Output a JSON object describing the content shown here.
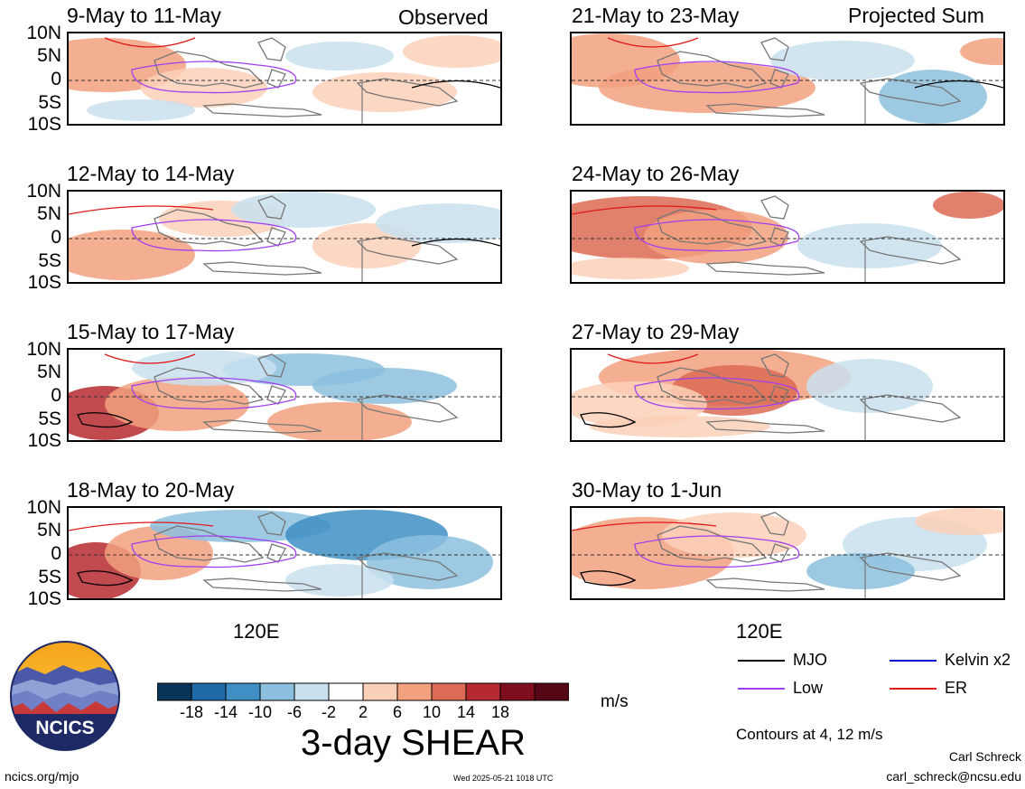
{
  "header": {
    "left_tag": "Observed",
    "right_tag": "Projected Sum"
  },
  "lat_labels": [
    "10N",
    "5N",
    "0",
    "5S",
    "10S"
  ],
  "lon_label": "120E",
  "panels": [
    {
      "title": "9-May to 11-May"
    },
    {
      "title": "12-May to 14-May"
    },
    {
      "title": "15-May to 17-May"
    },
    {
      "title": "18-May to 20-May"
    },
    {
      "title": "21-May to 23-May"
    },
    {
      "title": "24-May to 26-May"
    },
    {
      "title": "27-May to 29-May"
    },
    {
      "title": "30-May to 1-Jun"
    }
  ],
  "colorbar": {
    "labels": [
      "-18",
      "-14",
      "-10",
      "-6",
      "-2",
      "2",
      "6",
      "10",
      "14",
      "18"
    ],
    "colors": [
      "#0b3558",
      "#1f6aa6",
      "#3f8fc4",
      "#8cc0de",
      "#c9e0ef",
      "#ffffff",
      "#fbd0b8",
      "#f2a07e",
      "#dc6a54",
      "#b62a2f",
      "#800f1e",
      "#550715"
    ],
    "units": "m/s",
    "title": "3-day SHEAR"
  },
  "legend": {
    "items": [
      {
        "label": "MJO",
        "color": "#000000"
      },
      {
        "label": "Kelvin x2",
        "color": "#0000cc"
      },
      {
        "label": "Low",
        "color": "#a040f0"
      },
      {
        "label": "ER",
        "color": "#e01818"
      }
    ],
    "note": "Contours at 4, 12 m/s"
  },
  "logo": {
    "text": "NCICS"
  },
  "footer": {
    "url": "ncics.org/mjo",
    "timestamp": "Wed 2025-05-21 1018 UTC",
    "author": "Carl Schreck",
    "email": "carl_schreck@ncsu.edu"
  }
}
